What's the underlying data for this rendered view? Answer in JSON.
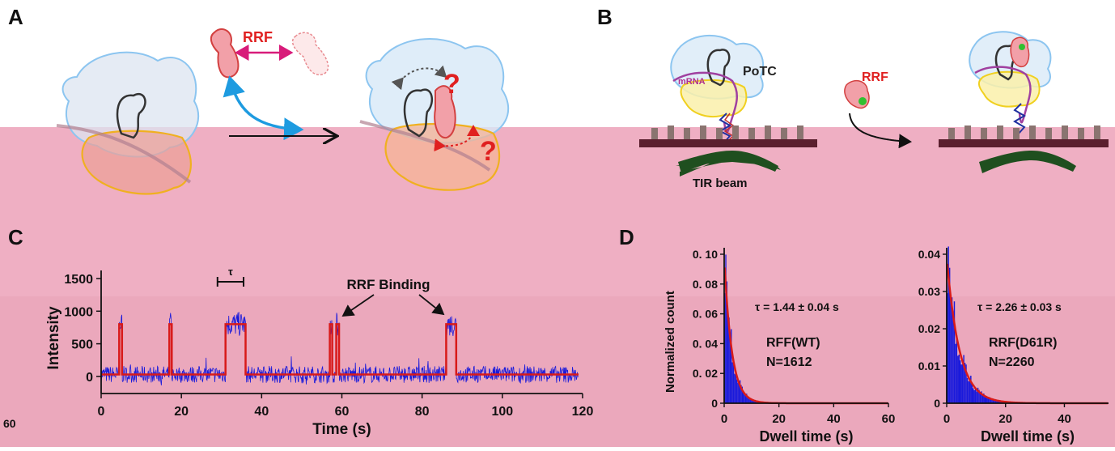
{
  "panels": {
    "a": {
      "letter": "A",
      "rrf_label": "RRF",
      "question": "?"
    },
    "b": {
      "letter": "B",
      "mrna_label": "mRNA",
      "potc_label": "PoTC",
      "rrf_label": "RRF",
      "tir_label": "TIR beam"
    },
    "c": {
      "letter": "C",
      "tau_label": "τ",
      "annotation": "RRF Binding",
      "left_fragment": "60"
    },
    "d": {
      "letter": "D",
      "ylabel": "Normalized count"
    }
  },
  "colors": {
    "pink_band": "#efafc3",
    "trace_blue": "#1a1adb",
    "fit_red": "#d81a1a",
    "rrf_magenta": "#d81b7a",
    "rrf_red": "#e02020",
    "arrow_blue": "#1e9be0",
    "tir_green": "#1f4f1f",
    "surface": "#5a1f2e"
  },
  "chart_data": [
    {
      "type": "line",
      "panel": "C",
      "xlabel": "Time (s)",
      "ylabel": "Intensity",
      "xlim": [
        0,
        120
      ],
      "ylim": [
        -200,
        1500
      ],
      "xticks": [
        0,
        20,
        40,
        60,
        80,
        100,
        120
      ],
      "yticks": [
        0,
        500,
        1000,
        1500
      ],
      "fit_steps": [
        {
          "start": 4.5,
          "end": 5.2,
          "value": 800
        },
        {
          "start": 17,
          "end": 17.6,
          "value": 800
        },
        {
          "start": 31,
          "end": 36,
          "value": 800
        },
        {
          "start": 57,
          "end": 57.6,
          "value": 800
        },
        {
          "start": 58.6,
          "end": 59.3,
          "value": 800
        },
        {
          "start": 86,
          "end": 88.5,
          "value": 800
        }
      ],
      "baseline": 30
    },
    {
      "type": "bar",
      "panel": "D-left",
      "xlabel": "Dwell time (s)",
      "ylabel": "Normalized count",
      "xlim": [
        0,
        60
      ],
      "xticks": [
        0,
        20,
        40,
        60
      ],
      "yticks": [
        0,
        0.02,
        0.04,
        0.06,
        0.08,
        0.1
      ],
      "ytick_labels": [
        "0",
        "0. 02",
        "0. 04",
        "0. 06",
        "0. 08",
        "0. 10"
      ],
      "ylim": [
        0,
        0.1
      ],
      "tau_text": "τ = 1.44 ± 0.04 s",
      "series_name": "RFF(WT)",
      "n_label": "N=1612",
      "tau": 1.44
    },
    {
      "type": "bar",
      "panel": "D-right",
      "xlabel": "Dwell time (s)",
      "xlim": [
        0,
        55
      ],
      "xticks": [
        0,
        20,
        40
      ],
      "yticks": [
        0,
        0.01,
        0.02,
        0.03,
        0.04
      ],
      "ytick_labels": [
        "0",
        "0.01",
        "0.02",
        "0.03",
        "0.04"
      ],
      "ylim": [
        0,
        0.04
      ],
      "tau_text": "τ = 2.26 ± 0.03 s",
      "series_name": "RRF(D61R)",
      "n_label": "N=2260",
      "tau": 2.26
    }
  ]
}
